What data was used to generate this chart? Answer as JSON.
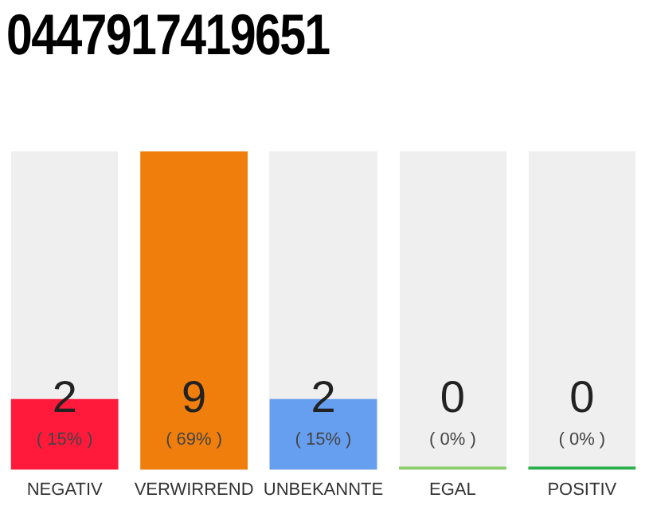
{
  "chart_data": {
    "type": "bar",
    "title": "0447917419651",
    "categories": [
      "NEGATIV",
      "VERWIRREND",
      "UNBEKANNTE",
      "EGAL",
      "POSITIV"
    ],
    "values": [
      2,
      9,
      2,
      0,
      0
    ],
    "colors": [
      "#ff1a3c",
      "#f07e0c",
      "#679ff0",
      "#8bcf6a",
      "#2ab04a"
    ],
    "value_labels": [
      "2\n( 15% )",
      "9\n( 69% )",
      "2\n( 15% )",
      "0\n( 0% )",
      "0\n( 0% )"
    ],
    "grid": false,
    "legend": false
  }
}
